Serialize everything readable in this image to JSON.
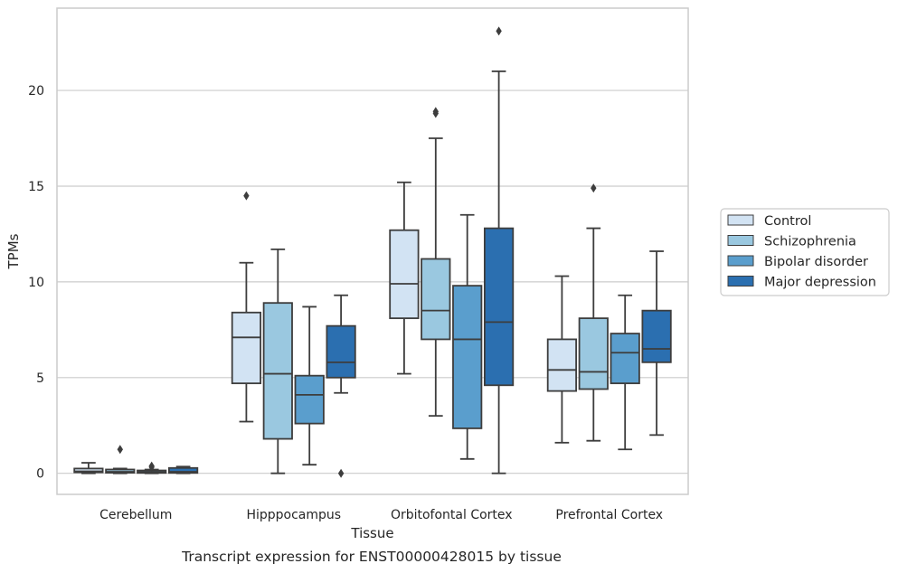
{
  "chart_data": {
    "type": "box",
    "xlabel": "Tissue",
    "ylabel": "TPMs",
    "caption": "Transcript expression for ENST00000428015 by tissue",
    "ylim": [
      -1.1,
      24.3
    ],
    "yticks": [
      "0",
      "5",
      "10",
      "15",
      "20"
    ],
    "grid": "horizontal",
    "legend_position": "right",
    "categories": [
      "Cerebellum",
      "Hipppocampus",
      "Orbitofontal Cortex",
      "Prefrontal Cortex"
    ],
    "series": [
      {
        "name": "Control",
        "color": "#d2e3f3",
        "boxes": [
          {
            "min": 0.0,
            "q1": 0.05,
            "median": 0.1,
            "q3": 0.25,
            "max": 0.55,
            "outliers": []
          },
          {
            "min": 2.7,
            "q1": 4.7,
            "median": 7.1,
            "q3": 8.4,
            "max": 11.0,
            "outliers": [
              14.5
            ]
          },
          {
            "min": 5.2,
            "q1": 8.1,
            "median": 9.9,
            "q3": 12.7,
            "max": 15.2,
            "outliers": []
          },
          {
            "min": 1.6,
            "q1": 4.3,
            "median": 5.4,
            "q3": 7.0,
            "max": 10.3,
            "outliers": []
          }
        ]
      },
      {
        "name": "Schizophrenia",
        "color": "#9ac8e0",
        "boxes": [
          {
            "min": 0.0,
            "q1": 0.03,
            "median": 0.08,
            "q3": 0.2,
            "max": 0.25,
            "outliers": [
              1.25
            ]
          },
          {
            "min": 0.0,
            "q1": 1.8,
            "median": 5.2,
            "q3": 8.9,
            "max": 11.7,
            "outliers": []
          },
          {
            "min": 3.0,
            "q1": 7.0,
            "median": 8.5,
            "q3": 11.2,
            "max": 17.5,
            "outliers": [
              18.8,
              18.9
            ]
          },
          {
            "min": 1.7,
            "q1": 4.4,
            "median": 5.3,
            "q3": 8.1,
            "max": 12.8,
            "outliers": [
              14.9
            ]
          }
        ]
      },
      {
        "name": "Bipolar disorder",
        "color": "#5a9ecd",
        "boxes": [
          {
            "min": 0.0,
            "q1": 0.02,
            "median": 0.07,
            "q3": 0.15,
            "max": 0.2,
            "outliers": [
              0.38,
              0.32
            ]
          },
          {
            "min": 0.45,
            "q1": 2.6,
            "median": 4.1,
            "q3": 5.1,
            "max": 8.7,
            "outliers": []
          },
          {
            "min": 0.75,
            "q1": 2.35,
            "median": 7.0,
            "q3": 9.8,
            "max": 13.5,
            "outliers": []
          },
          {
            "min": 1.25,
            "q1": 4.7,
            "median": 6.3,
            "q3": 7.3,
            "max": 9.3,
            "outliers": []
          }
        ]
      },
      {
        "name": "Major depression",
        "color": "#2b6fb0",
        "boxes": [
          {
            "min": 0.0,
            "q1": 0.02,
            "median": 0.08,
            "q3": 0.28,
            "max": 0.35,
            "outliers": []
          },
          {
            "min": 4.2,
            "q1": 5.0,
            "median": 5.8,
            "q3": 7.7,
            "max": 9.3,
            "outliers": [
              0.0
            ]
          },
          {
            "min": 0.0,
            "q1": 4.6,
            "median": 7.9,
            "q3": 12.8,
            "max": 21.0,
            "outliers": [
              23.1
            ]
          },
          {
            "min": 2.0,
            "q1": 5.8,
            "median": 6.5,
            "q3": 8.5,
            "max": 11.6,
            "outliers": []
          }
        ]
      }
    ]
  }
}
